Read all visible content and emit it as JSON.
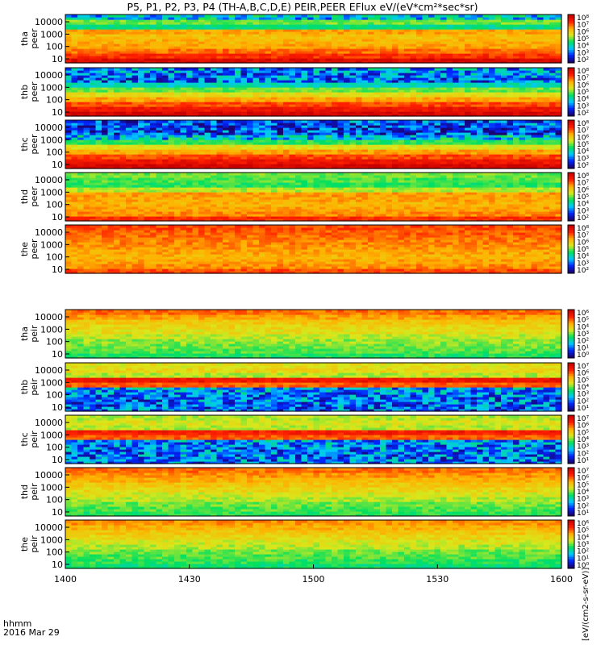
{
  "title": "P5, P1, P2, P3, P4 (TH-A,B,C,D,E) PEIR,PEER EFlux eV/(eV*cm²*sec*sr)",
  "time_stamp": {
    "line1": "hhmm",
    "line2": "2016 Mar 29"
  },
  "colorbar_unit": "[eV/(cm2-s-sr-eV)]",
  "chart_data": {
    "type": "heatmap",
    "x_axis": {
      "ticks": [
        "1400",
        "1430",
        "1500",
        "1530",
        "1600"
      ]
    },
    "y_axis": {
      "scale": "log",
      "ticks": [
        "10",
        "100",
        "1000",
        "10000"
      ]
    },
    "colormap": [
      "#1a006e",
      "#0026ff",
      "#00c8ff",
      "#00e060",
      "#d8e81c",
      "#ffb000",
      "#ff2000",
      "#c80000"
    ],
    "panels": [
      {
        "label_top": "tha",
        "label_bottom": "peer",
        "cbar_ticks": [
          "10⁸",
          "10⁷",
          "10⁶",
          "10⁵",
          "10⁴",
          "10³",
          "10²"
        ],
        "profile": [
          0.95,
          0.85,
          0.78,
          0.72,
          0.7,
          0.68,
          0.72,
          0.4,
          0.5,
          0.3
        ]
      },
      {
        "label_top": "thb",
        "label_bottom": "peer",
        "cbar_ticks": [
          "10⁸",
          "10⁷",
          "10⁶",
          "10⁵",
          "10⁴",
          "10³",
          "10²"
        ],
        "profile": [
          0.97,
          0.9,
          0.82,
          0.72,
          0.6,
          0.5,
          0.35,
          0.2,
          0.22,
          0.25
        ]
      },
      {
        "label_top": "thc",
        "label_bottom": "peer",
        "cbar_ticks": [
          "10⁸",
          "10⁷",
          "10⁶",
          "10⁵",
          "10⁴",
          "10³",
          "10²"
        ],
        "profile": [
          0.97,
          0.9,
          0.82,
          0.72,
          0.6,
          0.45,
          0.3,
          0.15,
          0.15,
          0.18
        ]
      },
      {
        "label_top": "thd",
        "label_bottom": "peer",
        "cbar_ticks": [
          "10⁸",
          "10⁷",
          "10⁶",
          "10⁵",
          "10⁴",
          "10³",
          "10²"
        ],
        "profile": [
          0.85,
          0.75,
          0.72,
          0.7,
          0.72,
          0.73,
          0.55,
          0.45,
          0.48,
          0.5
        ]
      },
      {
        "label_top": "the",
        "label_bottom": "peer",
        "cbar_ticks": [
          "10⁸",
          "10⁷",
          "10⁶",
          "10⁵",
          "10⁴",
          "10³",
          "10²"
        ],
        "profile": [
          0.82,
          0.75,
          0.72,
          0.7,
          0.72,
          0.74,
          0.76,
          0.78,
          0.8,
          0.82
        ]
      },
      {
        "label_top": "tha",
        "label_bottom": "peir",
        "cbar_ticks": [
          "10⁶",
          "10⁵",
          "10⁴",
          "10³",
          "10²",
          "10¹",
          "10⁰"
        ],
        "profile": [
          0.44,
          0.48,
          0.5,
          0.52,
          0.56,
          0.6,
          0.62,
          0.66,
          0.72,
          0.78
        ]
      },
      {
        "label_top": "thb",
        "label_bottom": "peir",
        "cbar_ticks": [
          "10⁷",
          "10⁶",
          "10⁵",
          "10⁴",
          "10³",
          "10²",
          "10¹"
        ],
        "profile": [
          0.2,
          0.2,
          0.2,
          0.22,
          0.25,
          0.8,
          0.9,
          0.55,
          0.62,
          0.6
        ]
      },
      {
        "label_top": "thc",
        "label_bottom": "peir",
        "cbar_ticks": [
          "10⁷",
          "10⁶",
          "10⁵",
          "10⁴",
          "10³",
          "10²",
          "10¹"
        ],
        "profile": [
          0.2,
          0.2,
          0.2,
          0.22,
          0.25,
          0.8,
          0.88,
          0.55,
          0.58,
          0.55
        ]
      },
      {
        "label_top": "thd",
        "label_bottom": "peir",
        "cbar_ticks": [
          "10⁷",
          "10⁶",
          "10⁵",
          "10⁴",
          "10³",
          "10²",
          "10¹"
        ],
        "profile": [
          0.45,
          0.48,
          0.5,
          0.55,
          0.58,
          0.62,
          0.66,
          0.7,
          0.74,
          0.78
        ]
      },
      {
        "label_top": "the",
        "label_bottom": "peir",
        "cbar_ticks": [
          "10⁶",
          "10⁵",
          "10⁴",
          "10³",
          "10²",
          "10¹",
          "10⁰"
        ],
        "profile": [
          0.42,
          0.45,
          0.48,
          0.5,
          0.55,
          0.58,
          0.62,
          0.66,
          0.7,
          0.74
        ]
      }
    ]
  }
}
